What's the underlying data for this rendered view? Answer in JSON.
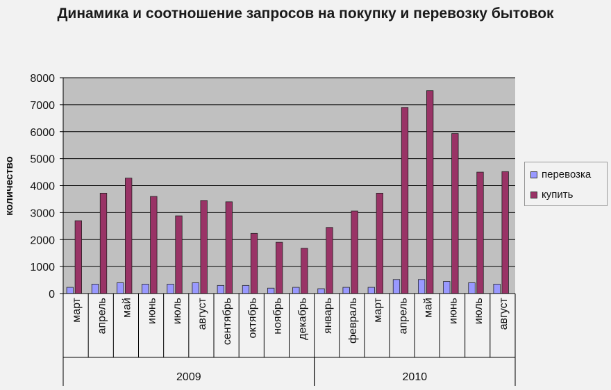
{
  "chart_data": {
    "type": "bar",
    "title": "Динамика и соотношение запросов на покупку и перевозку бытовок",
    "ylabel": "количество",
    "xlabel": "",
    "ylim": [
      0,
      8000
    ],
    "yticks": [
      0,
      1000,
      2000,
      3000,
      4000,
      5000,
      6000,
      7000,
      8000
    ],
    "grid": true,
    "legend": "right",
    "categories": [
      "март",
      "апрель",
      "май",
      "июнь",
      "июль",
      "август",
      "сентябрь",
      "октябрь",
      "ноябрь",
      "декабрь",
      "январь",
      "февраль",
      "март",
      "апрель",
      "май",
      "июнь",
      "июль",
      "август"
    ],
    "groups": [
      {
        "label": "2009",
        "start": 0,
        "count": 10
      },
      {
        "label": "2010",
        "start": 10,
        "count": 8
      }
    ],
    "series": [
      {
        "name": "перевозка",
        "color": "#9999ff",
        "values": [
          230,
          350,
          400,
          350,
          350,
          400,
          300,
          300,
          200,
          230,
          180,
          230,
          230,
          520,
          520,
          450,
          400,
          350
        ]
      },
      {
        "name": "купить",
        "color": "#993366",
        "values": [
          2700,
          3720,
          4280,
          3600,
          2880,
          3450,
          3400,
          2230,
          1900,
          1680,
          2450,
          3060,
          3720,
          6900,
          7520,
          5930,
          4500,
          4520
        ]
      }
    ]
  }
}
